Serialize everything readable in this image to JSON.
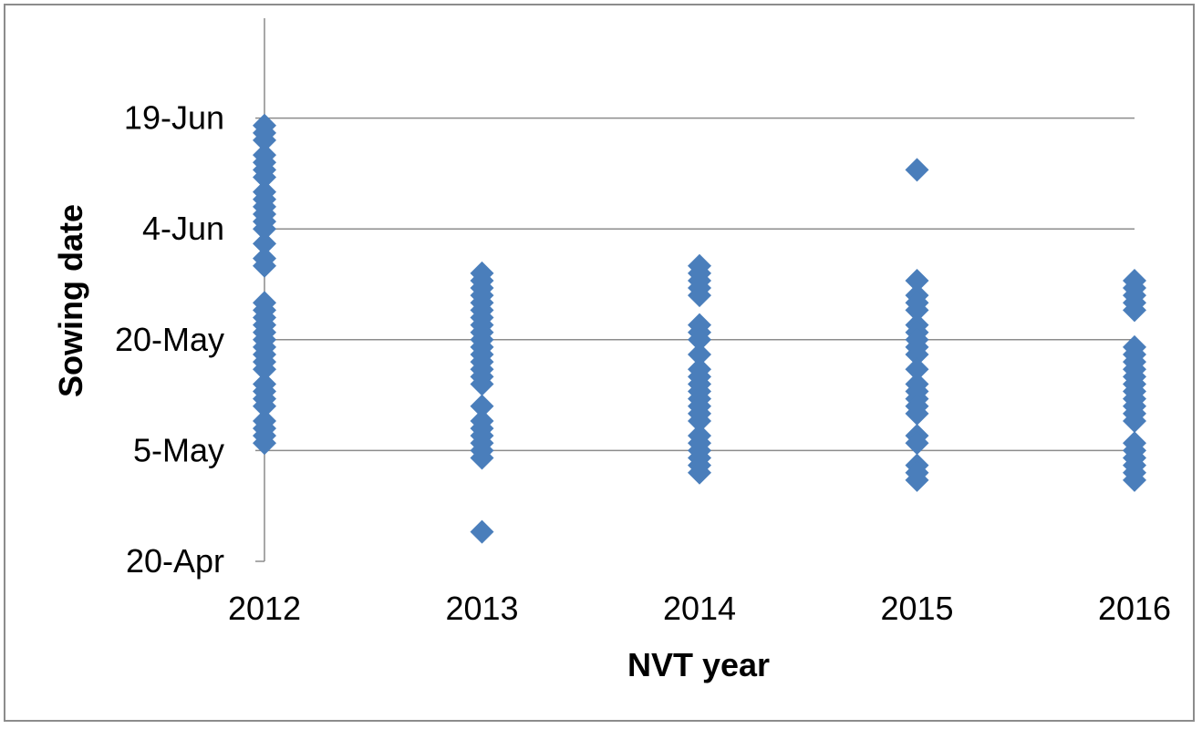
{
  "chart_data": {
    "type": "scatter",
    "xlabel": "NVT year",
    "ylabel": "Sowing date",
    "x_ticks": [
      "2012",
      "2013",
      "2014",
      "2015",
      "2016"
    ],
    "y_ticks": [
      "20-Apr",
      "5-May",
      "20-May",
      "4-Jun",
      "19-Jun"
    ],
    "ylim": [
      "20-Apr",
      "4-Jul"
    ],
    "grid": "horizontal",
    "legend": "none",
    "marker": "diamond",
    "color": "#4a7ebb",
    "series": [
      {
        "points": [
          {
            "x": "2012",
            "y": "18-Jun"
          },
          {
            "x": "2012",
            "y": "17-Jun"
          },
          {
            "x": "2012",
            "y": "16-Jun"
          },
          {
            "x": "2012",
            "y": "14-Jun"
          },
          {
            "x": "2012",
            "y": "13-Jun"
          },
          {
            "x": "2012",
            "y": "12-Jun"
          },
          {
            "x": "2012",
            "y": "11-Jun"
          },
          {
            "x": "2012",
            "y": "9-Jun"
          },
          {
            "x": "2012",
            "y": "8-Jun"
          },
          {
            "x": "2012",
            "y": "7-Jun"
          },
          {
            "x": "2012",
            "y": "6-Jun"
          },
          {
            "x": "2012",
            "y": "5-Jun"
          },
          {
            "x": "2012",
            "y": "4-Jun"
          },
          {
            "x": "2012",
            "y": "2-Jun"
          },
          {
            "x": "2012",
            "y": "31-May"
          },
          {
            "x": "2012",
            "y": "30-May"
          },
          {
            "x": "2012",
            "y": "25-May"
          },
          {
            "x": "2012",
            "y": "24-May"
          },
          {
            "x": "2012",
            "y": "23-May"
          },
          {
            "x": "2012",
            "y": "22-May"
          },
          {
            "x": "2012",
            "y": "21-May"
          },
          {
            "x": "2012",
            "y": "20-May"
          },
          {
            "x": "2012",
            "y": "19-May"
          },
          {
            "x": "2012",
            "y": "18-May"
          },
          {
            "x": "2012",
            "y": "17-May"
          },
          {
            "x": "2012",
            "y": "16-May"
          },
          {
            "x": "2012",
            "y": "14-May"
          },
          {
            "x": "2012",
            "y": "13-May"
          },
          {
            "x": "2012",
            "y": "12-May"
          },
          {
            "x": "2012",
            "y": "11-May"
          },
          {
            "x": "2012",
            "y": "9-May"
          },
          {
            "x": "2012",
            "y": "8-May"
          },
          {
            "x": "2012",
            "y": "7-May"
          },
          {
            "x": "2012",
            "y": "6-May"
          },
          {
            "x": "2013",
            "y": "29-May"
          },
          {
            "x": "2013",
            "y": "28-May"
          },
          {
            "x": "2013",
            "y": "27-May"
          },
          {
            "x": "2013",
            "y": "26-May"
          },
          {
            "x": "2013",
            "y": "25-May"
          },
          {
            "x": "2013",
            "y": "24-May"
          },
          {
            "x": "2013",
            "y": "23-May"
          },
          {
            "x": "2013",
            "y": "22-May"
          },
          {
            "x": "2013",
            "y": "21-May"
          },
          {
            "x": "2013",
            "y": "20-May"
          },
          {
            "x": "2013",
            "y": "19-May"
          },
          {
            "x": "2013",
            "y": "18-May"
          },
          {
            "x": "2013",
            "y": "17-May"
          },
          {
            "x": "2013",
            "y": "16-May"
          },
          {
            "x": "2013",
            "y": "15-May"
          },
          {
            "x": "2013",
            "y": "14-May"
          },
          {
            "x": "2013",
            "y": "11-May"
          },
          {
            "x": "2013",
            "y": "9-May"
          },
          {
            "x": "2013",
            "y": "8-May"
          },
          {
            "x": "2013",
            "y": "7-May"
          },
          {
            "x": "2013",
            "y": "6-May"
          },
          {
            "x": "2013",
            "y": "5-May"
          },
          {
            "x": "2013",
            "y": "4-May"
          },
          {
            "x": "2013",
            "y": "24-Apr"
          },
          {
            "x": "2014",
            "y": "30-May"
          },
          {
            "x": "2014",
            "y": "29-May"
          },
          {
            "x": "2014",
            "y": "28-May"
          },
          {
            "x": "2014",
            "y": "27-May"
          },
          {
            "x": "2014",
            "y": "26-May"
          },
          {
            "x": "2014",
            "y": "22-May"
          },
          {
            "x": "2014",
            "y": "21-May"
          },
          {
            "x": "2014",
            "y": "20-May"
          },
          {
            "x": "2014",
            "y": "18-May"
          },
          {
            "x": "2014",
            "y": "16-May"
          },
          {
            "x": "2014",
            "y": "15-May"
          },
          {
            "x": "2014",
            "y": "14-May"
          },
          {
            "x": "2014",
            "y": "13-May"
          },
          {
            "x": "2014",
            "y": "12-May"
          },
          {
            "x": "2014",
            "y": "11-May"
          },
          {
            "x": "2014",
            "y": "10-May"
          },
          {
            "x": "2014",
            "y": "9-May"
          },
          {
            "x": "2014",
            "y": "7-May"
          },
          {
            "x": "2014",
            "y": "6-May"
          },
          {
            "x": "2014",
            "y": "5-May"
          },
          {
            "x": "2014",
            "y": "4-May"
          },
          {
            "x": "2014",
            "y": "3-May"
          },
          {
            "x": "2014",
            "y": "2-May"
          },
          {
            "x": "2015",
            "y": "12-Jun"
          },
          {
            "x": "2015",
            "y": "28-May"
          },
          {
            "x": "2015",
            "y": "26-May"
          },
          {
            "x": "2015",
            "y": "25-May"
          },
          {
            "x": "2015",
            "y": "24-May"
          },
          {
            "x": "2015",
            "y": "22-May"
          },
          {
            "x": "2015",
            "y": "21-May"
          },
          {
            "x": "2015",
            "y": "20-May"
          },
          {
            "x": "2015",
            "y": "19-May"
          },
          {
            "x": "2015",
            "y": "18-May"
          },
          {
            "x": "2015",
            "y": "16-May"
          },
          {
            "x": "2015",
            "y": "14-May"
          },
          {
            "x": "2015",
            "y": "13-May"
          },
          {
            "x": "2015",
            "y": "12-May"
          },
          {
            "x": "2015",
            "y": "11-May"
          },
          {
            "x": "2015",
            "y": "10-May"
          },
          {
            "x": "2015",
            "y": "7-May"
          },
          {
            "x": "2015",
            "y": "6-May"
          },
          {
            "x": "2015",
            "y": "3-May"
          },
          {
            "x": "2015",
            "y": "2-May"
          },
          {
            "x": "2015",
            "y": "1-May"
          },
          {
            "x": "2016",
            "y": "28-May"
          },
          {
            "x": "2016",
            "y": "27-May"
          },
          {
            "x": "2016",
            "y": "26-May"
          },
          {
            "x": "2016",
            "y": "25-May"
          },
          {
            "x": "2016",
            "y": "24-May"
          },
          {
            "x": "2016",
            "y": "19-May"
          },
          {
            "x": "2016",
            "y": "18-May"
          },
          {
            "x": "2016",
            "y": "17-May"
          },
          {
            "x": "2016",
            "y": "16-May"
          },
          {
            "x": "2016",
            "y": "15-May"
          },
          {
            "x": "2016",
            "y": "14-May"
          },
          {
            "x": "2016",
            "y": "13-May"
          },
          {
            "x": "2016",
            "y": "12-May"
          },
          {
            "x": "2016",
            "y": "11-May"
          },
          {
            "x": "2016",
            "y": "10-May"
          },
          {
            "x": "2016",
            "y": "9-May"
          },
          {
            "x": "2016",
            "y": "6-May"
          },
          {
            "x": "2016",
            "y": "5-May"
          },
          {
            "x": "2016",
            "y": "4-May"
          },
          {
            "x": "2016",
            "y": "3-May"
          },
          {
            "x": "2016",
            "y": "2-May"
          },
          {
            "x": "2016",
            "y": "1-May"
          }
        ]
      }
    ]
  }
}
